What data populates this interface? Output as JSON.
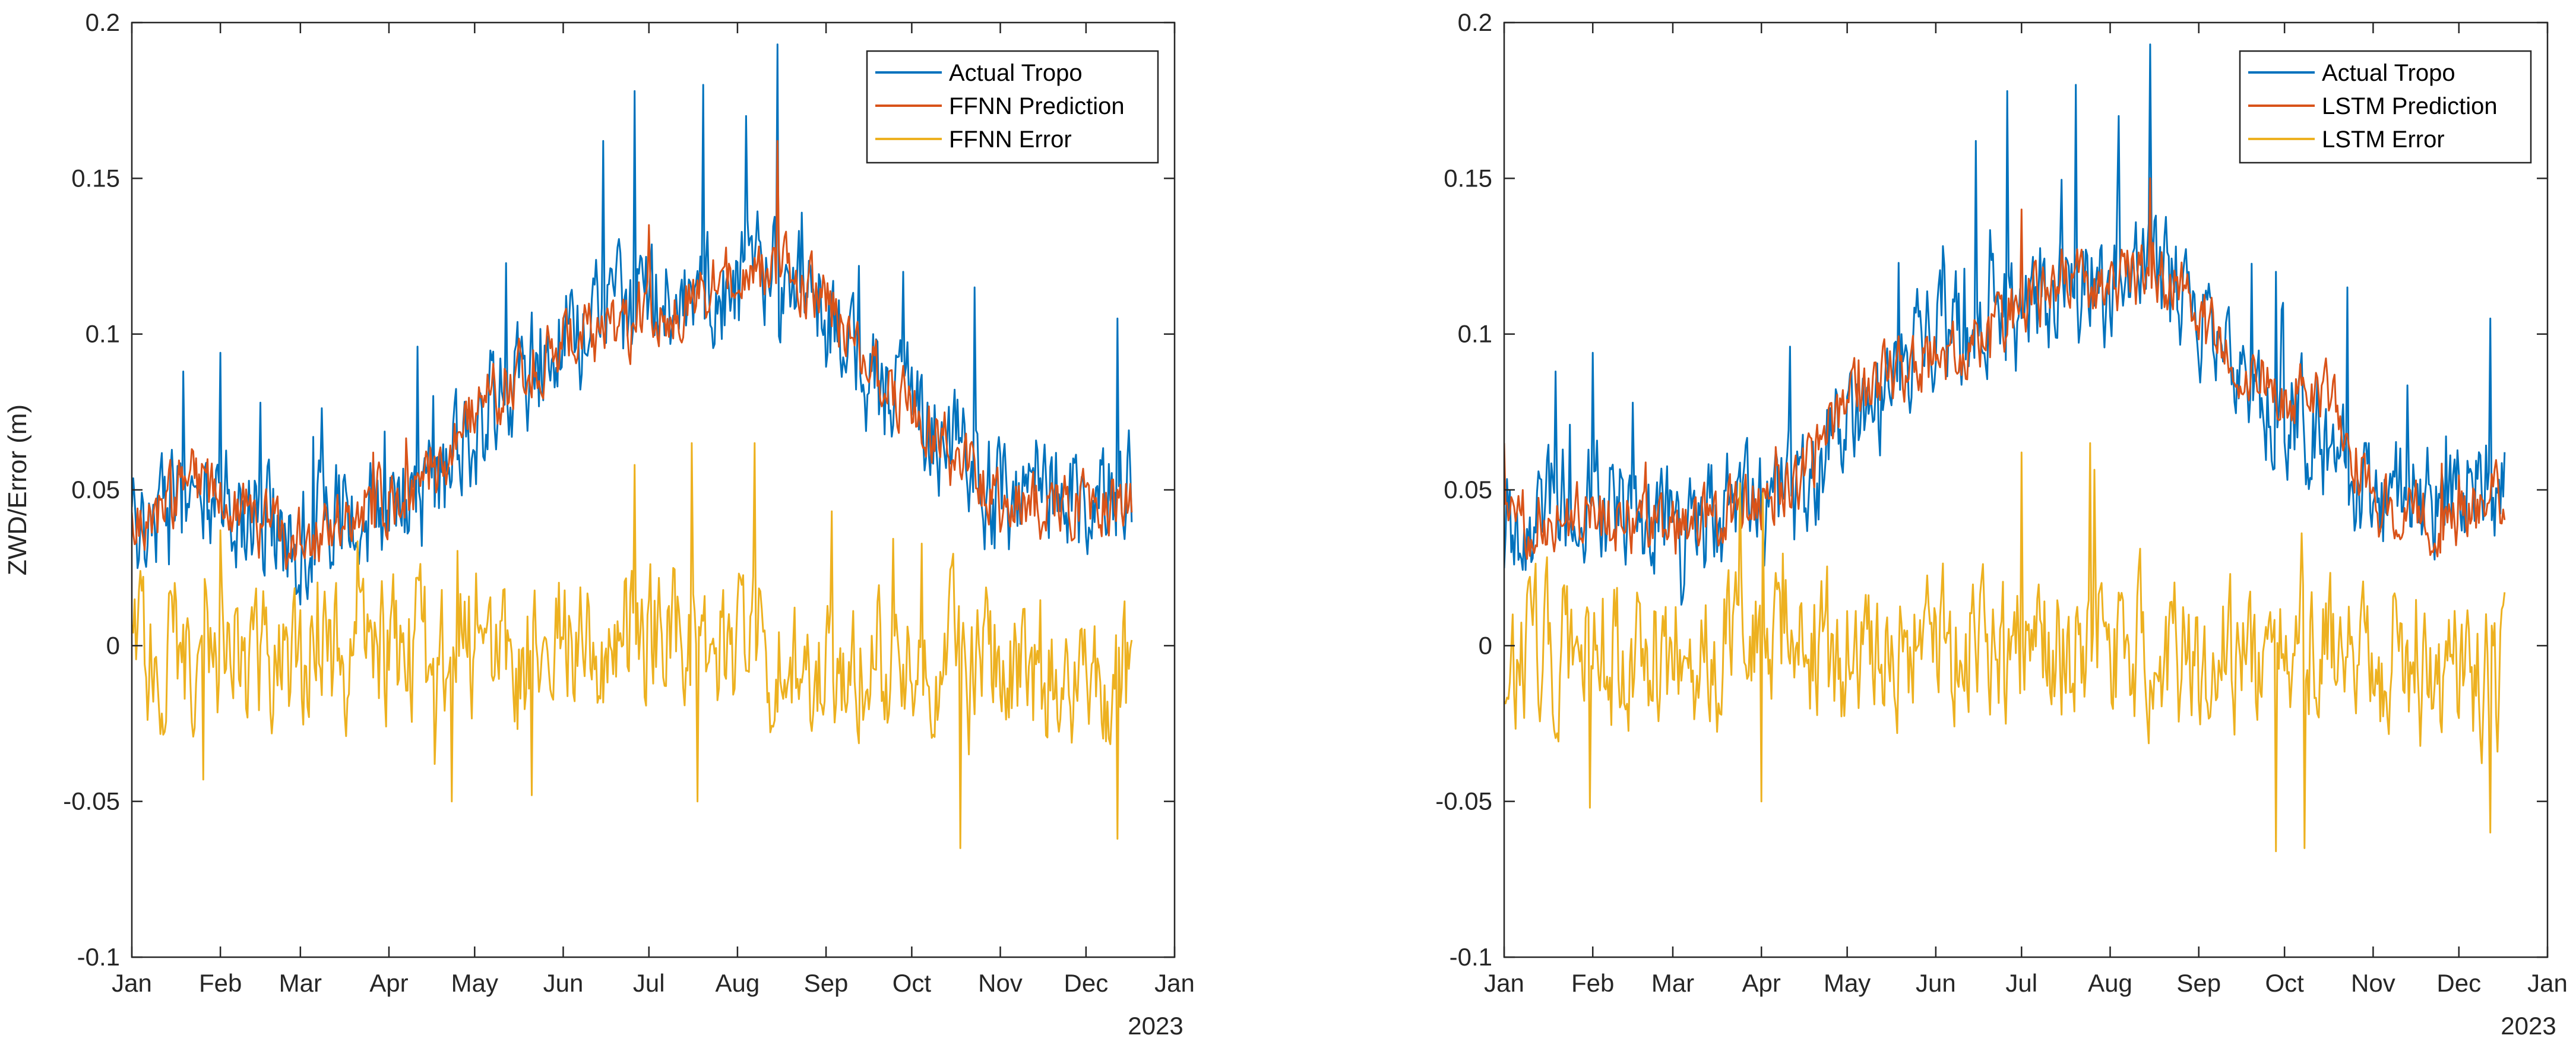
{
  "chart_data": [
    {
      "type": "line",
      "ylabel": "ZWD/Error (m)",
      "xlabel": "",
      "year_label": "2023",
      "ylim": [
        -0.1,
        0.2
      ],
      "yticks": [
        -0.1,
        -0.05,
        0,
        0.05,
        0.1,
        0.15,
        0.2
      ],
      "ytick_labels": [
        "-0.1",
        "-0.05",
        "0",
        "0.05",
        "0.1",
        "0.15",
        "0.2"
      ],
      "xlim": [
        0,
        365
      ],
      "xticks": [
        0,
        31,
        59,
        90,
        120,
        151,
        181,
        212,
        243,
        273,
        304,
        334,
        365
      ],
      "xtick_labels": [
        "Jan",
        "Feb",
        "Mar",
        "Apr",
        "May",
        "Jun",
        "Jul",
        "Aug",
        "Sep",
        "Oct",
        "Nov",
        "Dec",
        "Jan"
      ],
      "legend": {
        "position": "top-right",
        "entries": [
          "Actual Tropo",
          "FFNN Prediction",
          "FFNN Error"
        ]
      },
      "series": [
        {
          "name": "Actual Tropo",
          "color": "#0072BD",
          "x": [
            0,
            10,
            20,
            31,
            45,
            59,
            75,
            90,
            105,
            120,
            135,
            151,
            166,
            181,
            196,
            212,
            227,
            243,
            258,
            273,
            288,
            304,
            319,
            334,
            350
          ],
          "values": [
            0.04,
            0.043,
            0.048,
            0.046,
            0.041,
            0.036,
            0.042,
            0.045,
            0.048,
            0.07,
            0.085,
            0.1,
            0.105,
            0.11,
            0.112,
            0.115,
            0.12,
            0.105,
            0.085,
            0.075,
            0.065,
            0.045,
            0.048,
            0.05,
            0.052
          ],
          "noise": 0.016,
          "spikes": [
            [
              18,
              0.088
            ],
            [
              31,
              0.094
            ],
            [
              45,
              0.078
            ],
            [
              100,
              0.096
            ],
            [
              165,
              0.162
            ],
            [
              176,
              0.178
            ],
            [
              200,
              0.18
            ],
            [
              215,
              0.17
            ],
            [
              226,
              0.193
            ],
            [
              270,
              0.12
            ],
            [
              295,
              0.115
            ],
            [
              345,
              0.105
            ]
          ]
        },
        {
          "name": "FFNN Prediction",
          "color": "#D95319",
          "x": [
            0,
            10,
            20,
            31,
            45,
            59,
            75,
            90,
            105,
            120,
            135,
            151,
            166,
            181,
            196,
            212,
            227,
            243,
            258,
            273,
            288,
            304,
            319,
            334,
            350
          ],
          "values": [
            0.04,
            0.044,
            0.055,
            0.045,
            0.038,
            0.033,
            0.042,
            0.048,
            0.052,
            0.075,
            0.088,
            0.098,
            0.1,
            0.108,
            0.112,
            0.118,
            0.12,
            0.11,
            0.09,
            0.075,
            0.062,
            0.045,
            0.046,
            0.045,
            0.045
          ],
          "noise": 0.009,
          "spikes": [
            [
              226,
              0.162
            ],
            [
              181,
              0.135
            ]
          ]
        },
        {
          "name": "FFNN Error",
          "color": "#EDB120",
          "x": [
            0,
            31,
            59,
            90,
            120,
            151,
            181,
            212,
            243,
            273,
            304,
            334,
            350
          ],
          "values": [
            0,
            -0.004,
            -0.005,
            0,
            -0.002,
            0,
            0.002,
            0,
            -0.005,
            0,
            -0.006,
            -0.01,
            -0.012
          ],
          "noise": 0.02,
          "spikes": [
            [
              25,
              -0.043
            ],
            [
              112,
              -0.05
            ],
            [
              140,
              -0.048
            ],
            [
              176,
              0.058
            ],
            [
              198,
              -0.05
            ],
            [
              196,
              0.065
            ],
            [
              218,
              0.065
            ],
            [
              290,
              -0.065
            ],
            [
              345,
              -0.062
            ]
          ]
        }
      ]
    },
    {
      "type": "line",
      "ylabel": "",
      "xlabel": "",
      "year_label": "2023",
      "ylim": [
        -0.1,
        0.2
      ],
      "yticks": [
        -0.1,
        -0.05,
        0,
        0.05,
        0.1,
        0.15,
        0.2
      ],
      "ytick_labels": [
        "-0.1",
        "-0.05",
        "0",
        "0.05",
        "0.1",
        "0.15",
        "0.2"
      ],
      "xlim": [
        0,
        365
      ],
      "xticks": [
        0,
        31,
        59,
        90,
        120,
        151,
        181,
        212,
        243,
        273,
        304,
        334,
        365
      ],
      "xtick_labels": [
        "Jan",
        "Feb",
        "Mar",
        "Apr",
        "May",
        "Jun",
        "Jul",
        "Aug",
        "Sep",
        "Oct",
        "Nov",
        "Dec",
        "Jan"
      ],
      "legend": {
        "position": "top-right",
        "entries": [
          "Actual Tropo",
          "LSTM Prediction",
          "LSTM Error"
        ]
      },
      "series": [
        {
          "name": "Actual Tropo",
          "color": "#0072BD",
          "x": [
            0,
            10,
            20,
            31,
            45,
            59,
            75,
            90,
            105,
            120,
            135,
            151,
            166,
            181,
            196,
            212,
            227,
            243,
            258,
            273,
            288,
            304,
            319,
            334,
            350
          ],
          "values": [
            0.04,
            0.043,
            0.048,
            0.046,
            0.041,
            0.036,
            0.042,
            0.045,
            0.048,
            0.07,
            0.085,
            0.1,
            0.105,
            0.11,
            0.112,
            0.115,
            0.12,
            0.105,
            0.085,
            0.075,
            0.065,
            0.045,
            0.048,
            0.05,
            0.052
          ],
          "noise": 0.016,
          "spikes": [
            [
              18,
              0.088
            ],
            [
              31,
              0.094
            ],
            [
              45,
              0.078
            ],
            [
              100,
              0.096
            ],
            [
              165,
              0.162
            ],
            [
              176,
              0.178
            ],
            [
              200,
              0.18
            ],
            [
              215,
              0.17
            ],
            [
              226,
              0.193
            ],
            [
              270,
              0.12
            ],
            [
              295,
              0.115
            ],
            [
              345,
              0.105
            ]
          ]
        },
        {
          "name": "LSTM Prediction",
          "color": "#D95319",
          "x": [
            0,
            10,
            20,
            31,
            45,
            59,
            75,
            90,
            105,
            120,
            135,
            151,
            166,
            181,
            196,
            212,
            227,
            243,
            258,
            273,
            288,
            304,
            319,
            334,
            350
          ],
          "values": [
            0.042,
            0.04,
            0.042,
            0.04,
            0.039,
            0.038,
            0.041,
            0.046,
            0.055,
            0.078,
            0.088,
            0.092,
            0.098,
            0.11,
            0.115,
            0.118,
            0.118,
            0.11,
            0.09,
            0.08,
            0.085,
            0.045,
            0.042,
            0.04,
            0.048
          ],
          "noise": 0.009,
          "spikes": [
            [
              226,
              0.15
            ],
            [
              181,
              0.14
            ],
            [
              0,
              0.065
            ]
          ]
        },
        {
          "name": "LSTM Error",
          "color": "#EDB120",
          "x": [
            0,
            31,
            59,
            90,
            120,
            151,
            181,
            212,
            243,
            273,
            304,
            334,
            350
          ],
          "values": [
            0,
            -0.004,
            -0.005,
            0,
            -0.002,
            0,
            0.002,
            0,
            -0.005,
            0,
            -0.006,
            -0.01,
            -0.012
          ],
          "noise": 0.02,
          "spikes": [
            [
              30,
              -0.052
            ],
            [
              90,
              -0.05
            ],
            [
              181,
              0.062
            ],
            [
              205,
              0.065
            ],
            [
              270,
              -0.066
            ],
            [
              280,
              -0.065
            ],
            [
              345,
              -0.06
            ]
          ]
        }
      ]
    }
  ]
}
